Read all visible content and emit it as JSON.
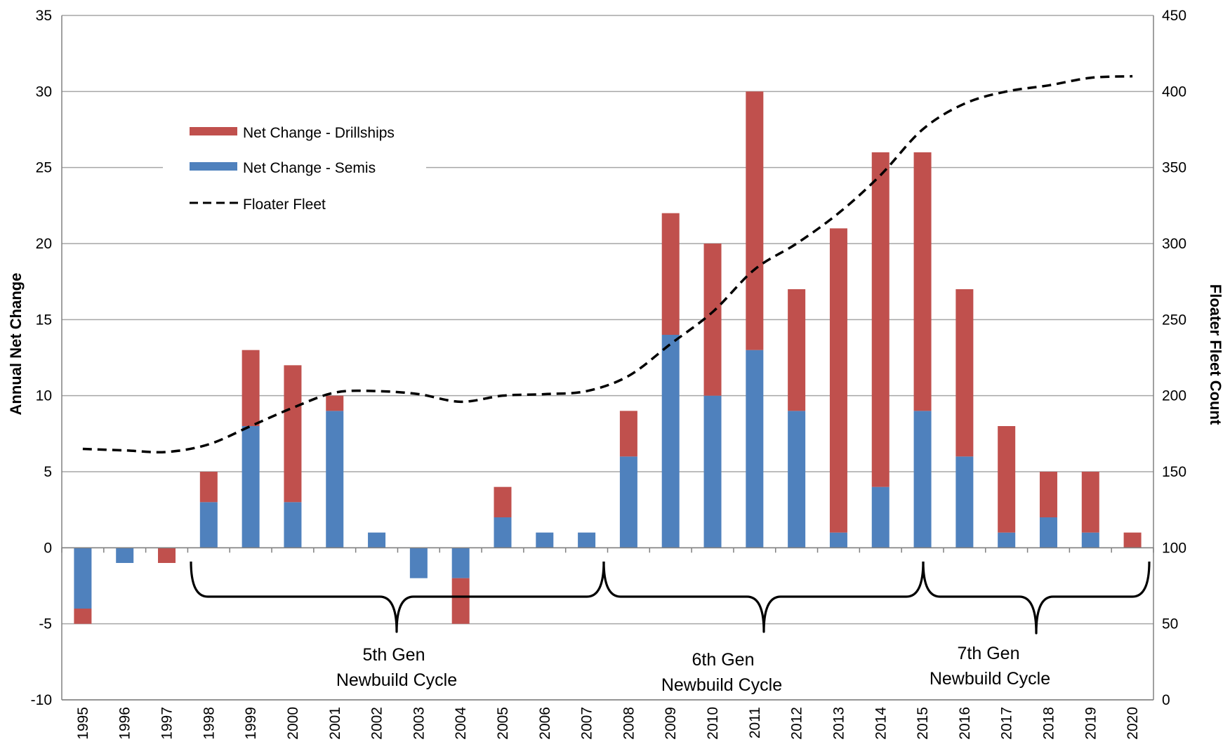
{
  "chart_data": {
    "type": "bar",
    "stacked": true,
    "categories": [
      "1995",
      "1996",
      "1997",
      "1998",
      "1999",
      "2000",
      "2001",
      "2002",
      "2003",
      "2004",
      "2005",
      "2006",
      "2007",
      "2008",
      "2009",
      "2010",
      "2011",
      "2012",
      "2013",
      "2014",
      "2015",
      "2016",
      "2017",
      "2018",
      "2019",
      "2020"
    ],
    "series": [
      {
        "name": "Net Change - Semis",
        "axis": "left",
        "color": "#4F81BD",
        "values": [
          -4,
          -1,
          0,
          3,
          8,
          3,
          9,
          1,
          -2,
          -2,
          2,
          1,
          1,
          6,
          14,
          10,
          13,
          9,
          1,
          4,
          9,
          6,
          1,
          2,
          1,
          0
        ]
      },
      {
        "name": "Net Change - Drillships",
        "axis": "left",
        "color": "#C0504D",
        "values": [
          -1,
          0,
          -1,
          2,
          5,
          9,
          1,
          0,
          0,
          -3,
          2,
          0,
          0,
          3,
          8,
          10,
          17,
          8,
          20,
          22,
          17,
          11,
          7,
          3,
          4,
          1
        ]
      },
      {
        "name": "Floater Fleet",
        "axis": "right",
        "type": "line",
        "style": "dashed",
        "color": "#000000",
        "values": [
          165,
          164,
          163,
          168,
          180,
          192,
          202,
          203,
          201,
          196,
          200,
          201,
          203,
          213,
          234,
          255,
          283,
          300,
          320,
          345,
          375,
          392,
          400,
          404,
          409,
          410
        ]
      }
    ],
    "legend": {
      "placement": "top-left",
      "entries": [
        "Net Change - Drillships",
        "Net Change - Semis",
        "Floater Fleet"
      ]
    },
    "ylabel": "Annual Net Change",
    "y2label": "Floater Fleet Count",
    "ylim": [
      -10,
      35
    ],
    "yticks": [
      -10,
      -5,
      0,
      5,
      10,
      15,
      20,
      25,
      30,
      35
    ],
    "y2lim": [
      0,
      450
    ],
    "y2ticks": [
      0,
      50,
      100,
      150,
      200,
      250,
      300,
      350,
      400,
      450
    ],
    "grid": true,
    "annotations": [
      {
        "line1": "5th Gen",
        "line2": "Newbuild Cycle",
        "from": "1997",
        "to": "2007"
      },
      {
        "line1": "6th Gen",
        "line2": "Newbuild Cycle",
        "from": "2007",
        "to": "2015"
      },
      {
        "line1": "7th Gen",
        "line2": "Newbuild Cycle",
        "from": "2015",
        "to": "2020"
      }
    ]
  }
}
